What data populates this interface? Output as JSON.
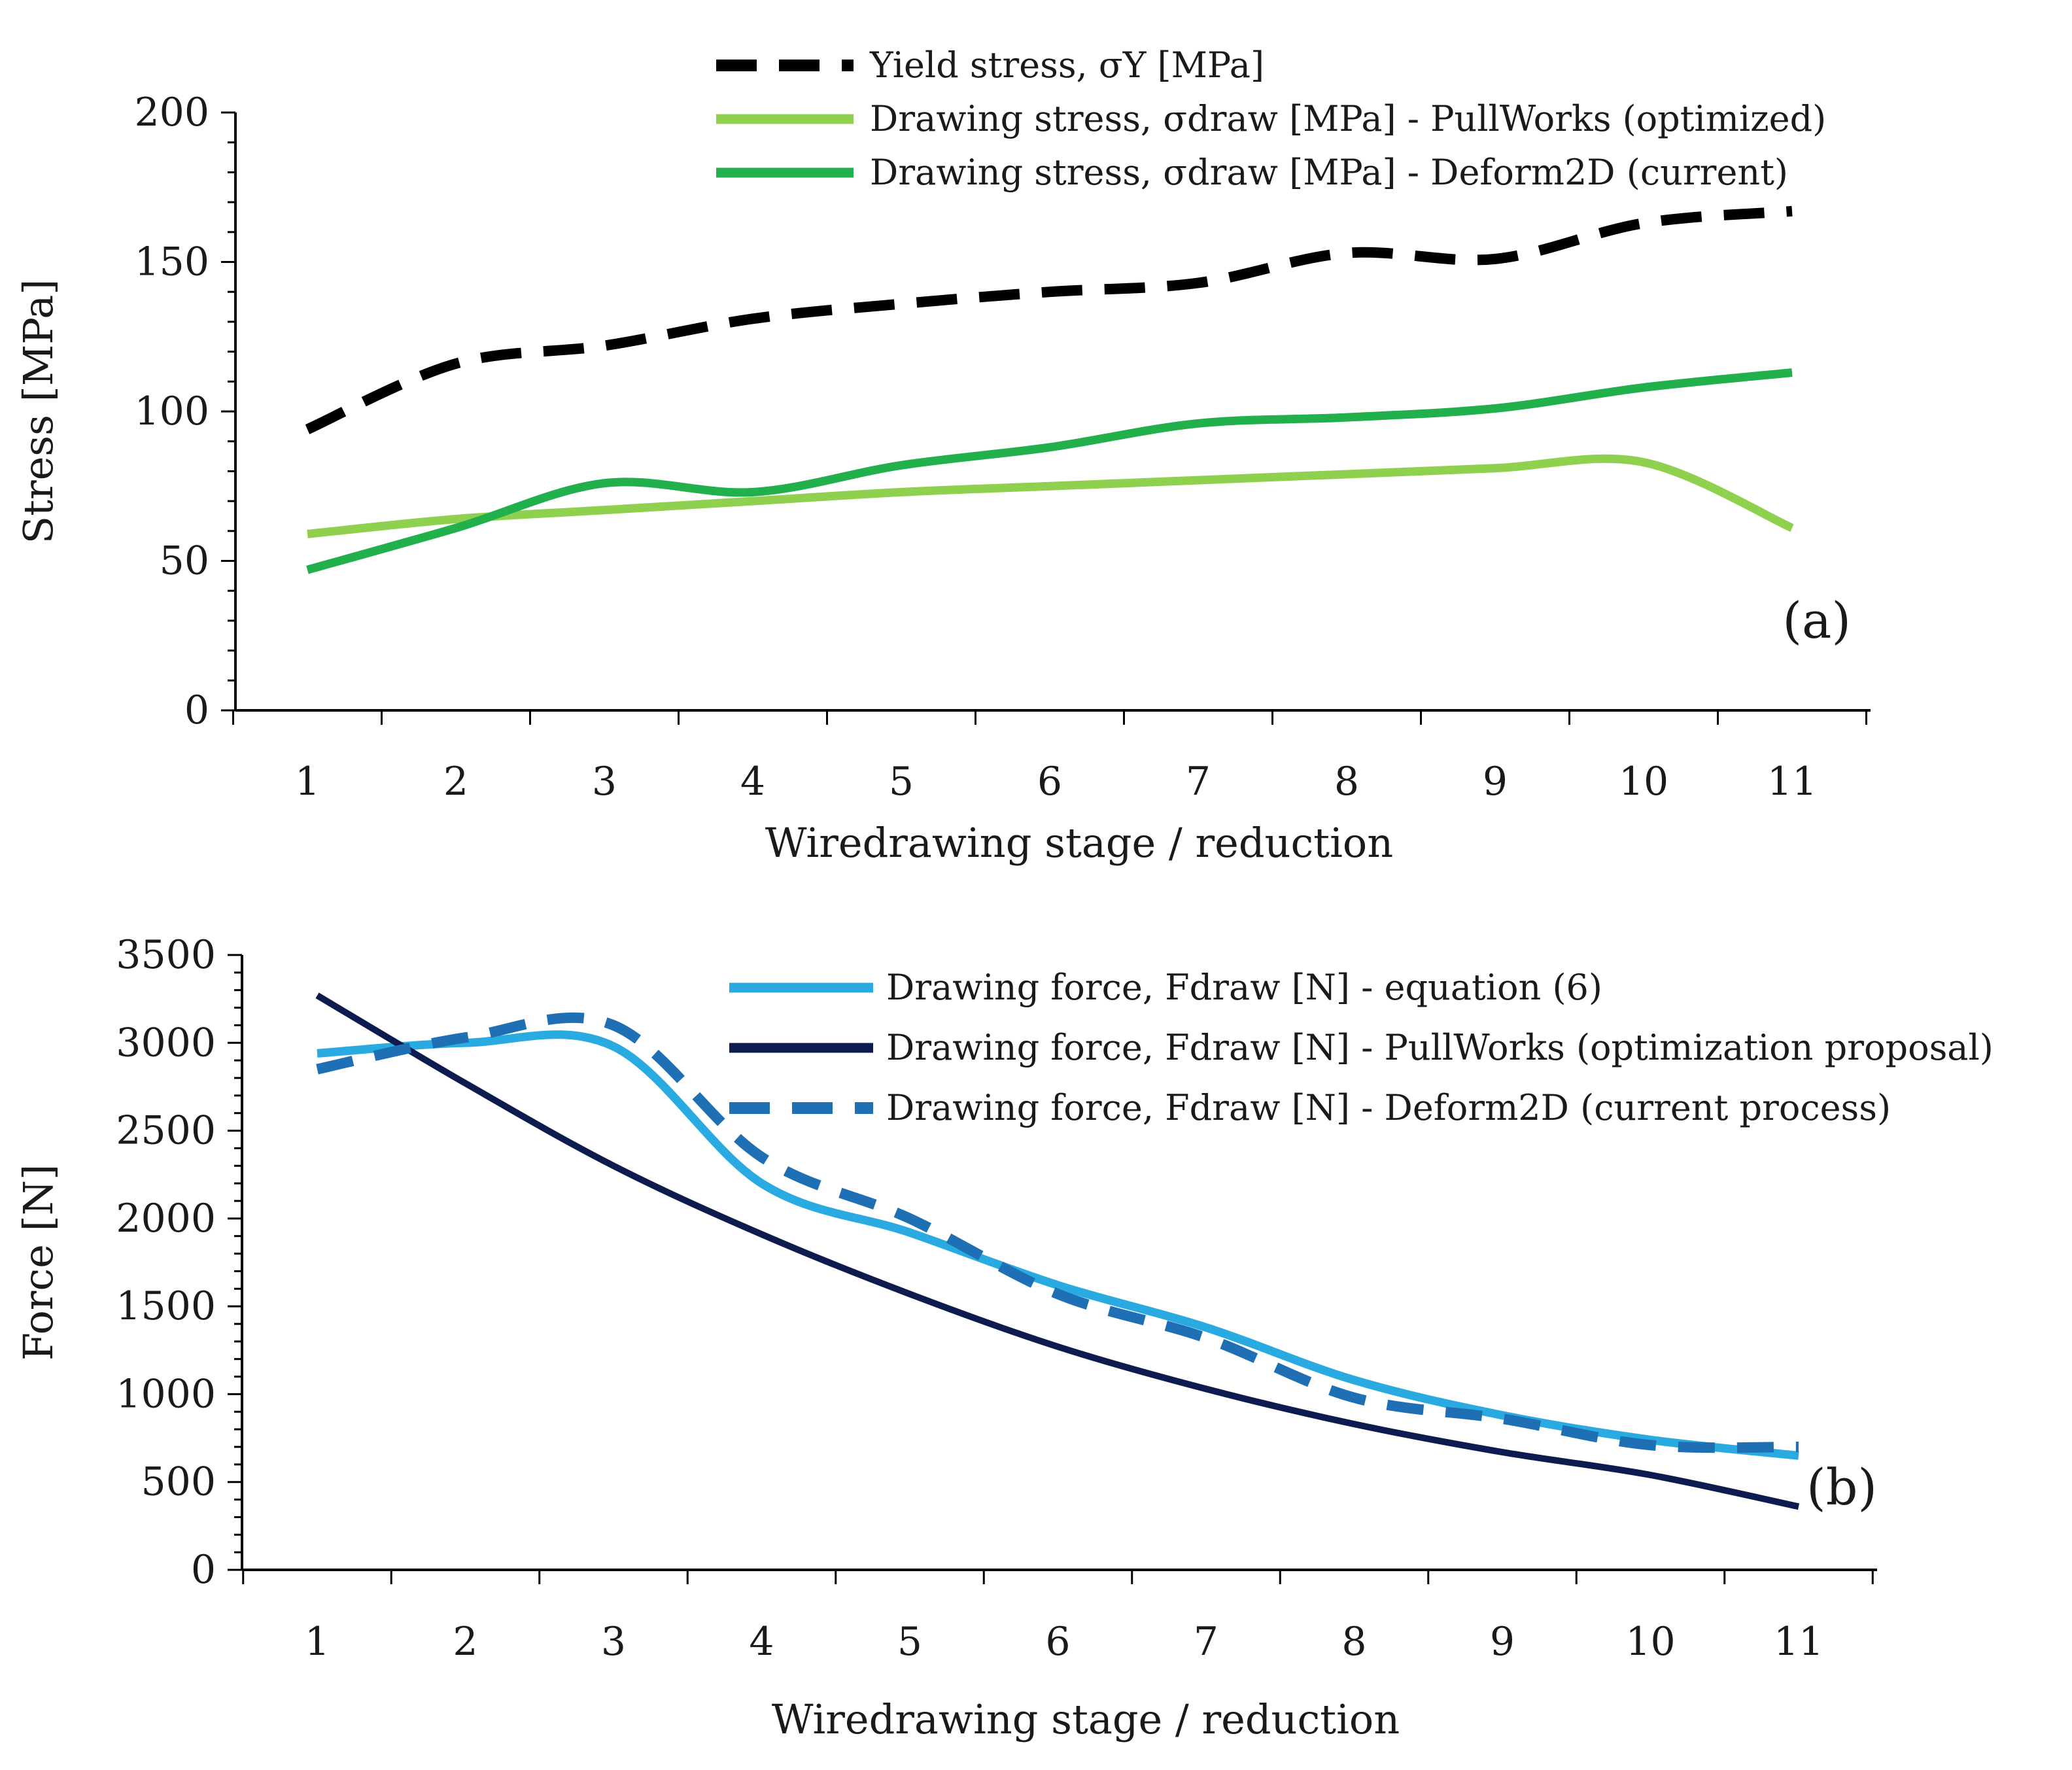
{
  "chart_data": [
    {
      "type": "line",
      "panel_label": "(a)",
      "x": [
        1,
        2,
        3,
        4,
        5,
        6,
        7,
        8,
        9,
        10,
        11
      ],
      "xlabel": "Wiredrawing stage / reduction",
      "ylabel": "Stress [MPa]",
      "ylim": [
        0,
        200
      ],
      "yticks": [
        0,
        50,
        100,
        150,
        200
      ],
      "legend_position": "top",
      "series": [
        {
          "name": "Yield stress, σY [MPa]",
          "color": "#000000",
          "style": "dashed",
          "values": [
            94,
            116,
            122,
            131,
            136,
            140,
            143,
            153,
            151,
            163,
            167
          ]
        },
        {
          "name": "Drawing stress, σdraw [MPa] - PullWorks (optimized)",
          "color": "#8fd14f",
          "style": "solid",
          "values": [
            59,
            64,
            67,
            70,
            73,
            75,
            77,
            79,
            81,
            83,
            61
          ]
        },
        {
          "name": "Drawing stress, σdraw [MPa] - Deform2D (current)",
          "color": "#21b04b",
          "style": "solid",
          "values": [
            47,
            61,
            76,
            73,
            82,
            88,
            96,
            98,
            101,
            108,
            113
          ]
        }
      ]
    },
    {
      "type": "line",
      "panel_label": "(b)",
      "x": [
        1,
        2,
        3,
        4,
        5,
        6,
        7,
        8,
        9,
        10,
        11
      ],
      "xlabel": "Wiredrawing stage / reduction",
      "ylabel": "Force [N]",
      "ylim": [
        0,
        3500
      ],
      "yticks": [
        0,
        500,
        1000,
        1500,
        2000,
        2500,
        3000,
        3500
      ],
      "legend_position": "top-right",
      "series": [
        {
          "name": "Drawing force, Fdraw [N] - equation (6)",
          "color": "#29abe2",
          "style": "solid",
          "values": [
            2940,
            3000,
            2980,
            2200,
            1920,
            1620,
            1380,
            1080,
            880,
            740,
            650
          ]
        },
        {
          "name": "Drawing force, Fdraw [N] - PullWorks (optimization proposal)",
          "color": "#0d1b4f",
          "style": "solid",
          "values": [
            3270,
            2770,
            2300,
            1910,
            1570,
            1270,
            1030,
            830,
            670,
            540,
            360
          ]
        },
        {
          "name": "Drawing force, Fdraw [N] - Deform2D (current process)",
          "color": "#1f6fb5",
          "style": "dashed",
          "values": [
            2850,
            3030,
            3100,
            2350,
            2000,
            1570,
            1320,
            980,
            860,
            710,
            700
          ]
        }
      ]
    }
  ]
}
